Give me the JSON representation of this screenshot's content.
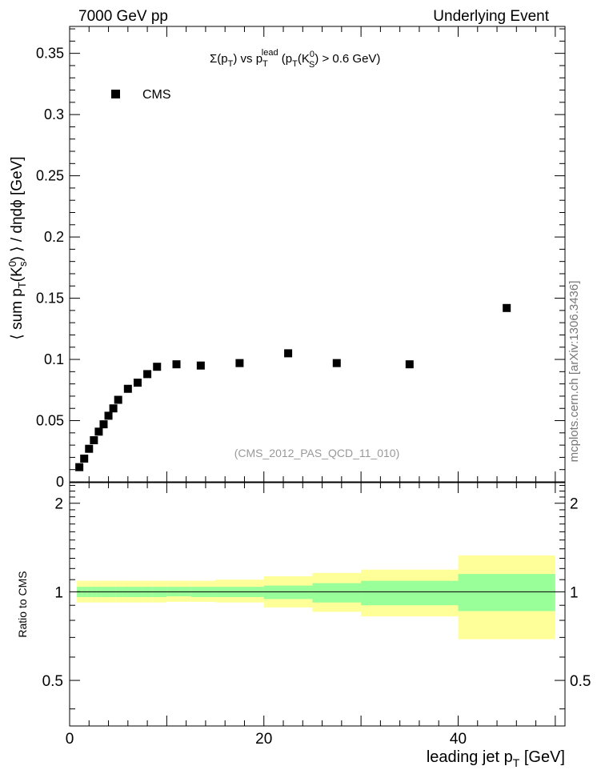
{
  "header": {
    "left": "7000 GeV pp",
    "right": "Underlying Event"
  },
  "side_label": "mcplots.cern.ch [arXiv:1306.3436]",
  "watermark": "(CMS_2012_PAS_QCD_11_010)",
  "chart_data": [
    {
      "type": "scatter",
      "panel": "main",
      "title_parts": {
        "lead": "Σ(p",
        "sub_T": "T",
        "mid": ") vs p",
        "sup_lead": "lead",
        "cond_open": " (p",
        "cond_K": "(K",
        "sup_0": "0",
        "sub_S": "S",
        "cond_close": ") > 0.6 GeV)"
      },
      "ylabel": "⟨ sum p_T(K^0_s) ⟩ / dηdϕ [GeV]",
      "xlabel": "",
      "xlim": [
        0,
        51
      ],
      "ylim": [
        0,
        0.372
      ],
      "yticks": [
        "0",
        "0.05",
        "0.1",
        "0.15",
        "0.2",
        "0.25",
        "0.3",
        "0.35"
      ],
      "legend": {
        "entry": "CMS",
        "placement": "top-left"
      },
      "series": [
        {
          "name": "CMS",
          "marker": "square",
          "color": "#000000",
          "x": [
            1.0,
            1.5,
            2.0,
            2.5,
            3.0,
            3.5,
            4.0,
            4.5,
            5.0,
            6.0,
            7.0,
            8.0,
            9.0,
            11.0,
            13.5,
            17.5,
            22.5,
            27.5,
            35.0,
            45.0
          ],
          "y": [
            0.012,
            0.019,
            0.027,
            0.034,
            0.041,
            0.047,
            0.054,
            0.06,
            0.067,
            0.076,
            0.081,
            0.088,
            0.094,
            0.096,
            0.095,
            0.097,
            0.105,
            0.097,
            0.096,
            0.142
          ]
        }
      ]
    },
    {
      "type": "area",
      "panel": "ratio",
      "ylabel": "Ratio to CMS",
      "xlabel": "leading jet p_T [GeV]",
      "xlim": [
        0,
        51
      ],
      "ylim": [
        0.35,
        2.35
      ],
      "log_y": true,
      "yticks": [
        "0.5",
        "1",
        "2"
      ],
      "xticks": [
        "0",
        "20",
        "40"
      ],
      "reference_line": 1.0,
      "bands": {
        "x_edges": [
          0.75,
          1.25,
          1.75,
          2.25,
          2.75,
          3.25,
          3.75,
          4.25,
          4.75,
          5.5,
          6.5,
          7.5,
          8.5,
          10.0,
          12.5,
          15.0,
          20.0,
          25.0,
          30.0,
          40.0,
          50.0
        ],
        "outer": {
          "color": "#ffff99",
          "low": [
            0.92,
            0.92,
            0.92,
            0.92,
            0.92,
            0.92,
            0.92,
            0.92,
            0.92,
            0.92,
            0.92,
            0.92,
            0.92,
            0.925,
            0.925,
            0.92,
            0.885,
            0.855,
            0.825,
            0.69
          ],
          "high": [
            1.09,
            1.09,
            1.09,
            1.09,
            1.09,
            1.09,
            1.09,
            1.09,
            1.09,
            1.09,
            1.09,
            1.09,
            1.09,
            1.09,
            1.09,
            1.1,
            1.13,
            1.16,
            1.19,
            1.33
          ]
        },
        "inner": {
          "color": "#99ff99",
          "low": [
            0.96,
            0.96,
            0.96,
            0.96,
            0.96,
            0.96,
            0.96,
            0.96,
            0.96,
            0.96,
            0.96,
            0.96,
            0.96,
            0.965,
            0.96,
            0.96,
            0.945,
            0.92,
            0.9,
            0.86
          ],
          "high": [
            1.04,
            1.04,
            1.04,
            1.04,
            1.04,
            1.04,
            1.04,
            1.04,
            1.04,
            1.04,
            1.04,
            1.04,
            1.04,
            1.04,
            1.04,
            1.04,
            1.05,
            1.07,
            1.09,
            1.15
          ]
        }
      }
    }
  ]
}
